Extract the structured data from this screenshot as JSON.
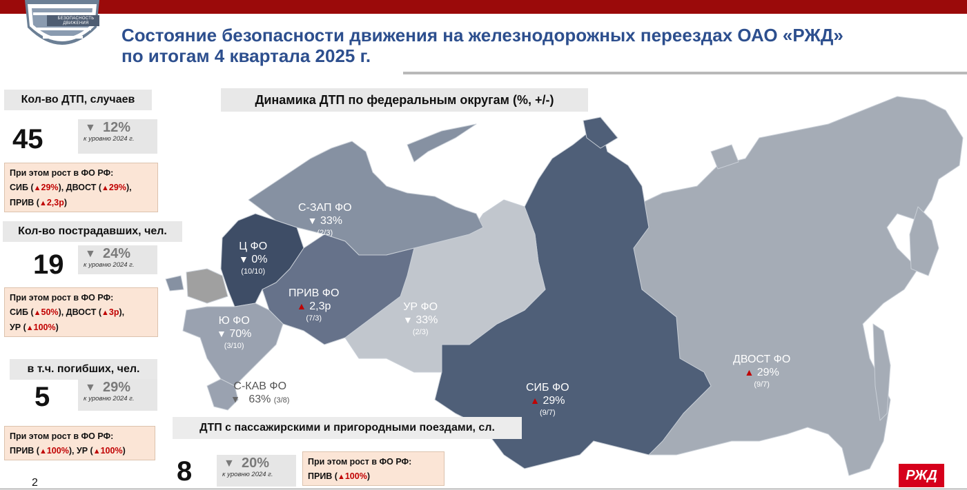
{
  "header": {
    "logo_text": "БЕЗОПАСНОСТЬ ДВИЖЕНИЯ",
    "title_line1": "Состояние безопасности движения на железнодорожных переездах ОАО «РЖД»",
    "title_line2": "по итогам 4 квартала 2025 г."
  },
  "stats": {
    "accidents": {
      "label": "Кол-во  ДТП, случаев",
      "value": "45",
      "delta": "12%",
      "delta_sub": "к уровню 2024 г.",
      "note_heading": "При этом рост в ФО РФ:",
      "note_items": [
        {
          "prefix": "СИБ (",
          "value": "29%",
          "suffix": "),  "
        },
        {
          "prefix": "ДВОСТ (",
          "value": "29%",
          "suffix": "),"
        },
        {
          "prefix": "ПРИВ (",
          "value": "2,3р",
          "suffix": ")"
        }
      ]
    },
    "injured": {
      "label": "Кол-во пострадавших, чел.",
      "value": "19",
      "delta": "24%",
      "delta_sub": "к уровню 2024 г.",
      "note_heading": "При этом рост в ФО РФ:",
      "note_items": [
        {
          "prefix": "СИБ (",
          "value": "50%",
          "suffix": "),  "
        },
        {
          "prefix": "ДВОСТ (",
          "value": "3р",
          "suffix": "),"
        },
        {
          "prefix": "УР (",
          "value": "100%",
          "suffix": ")"
        }
      ]
    },
    "killed": {
      "label": "в т.ч. погибших, чел.",
      "value": "5",
      "delta": "29%",
      "delta_sub": "к уровню 2024 г.",
      "note_heading": "При этом рост в ФО РФ:",
      "note_items": [
        {
          "prefix": "ПРИВ (",
          "value": "100%",
          "suffix": "), "
        },
        {
          "prefix": "УР (",
          "value": "100%",
          "suffix": ")"
        }
      ]
    },
    "passenger": {
      "label": "ДТП с пассажирскими и пригородными поездами, сл.",
      "value": "8",
      "delta": "20%",
      "delta_sub": "к уровню 2024 г.",
      "note_heading": "При этом рост в ФО РФ:",
      "note_items": [
        {
          "prefix": "ПРИВ (",
          "value": "100%",
          "suffix": ")"
        }
      ]
    }
  },
  "map": {
    "title": "Динамика ДТП по федеральным округам (%, +/-)",
    "regions": [
      {
        "name": "С-ЗАП ФО",
        "trend": "down",
        "value": "33%",
        "counts": "(2/3)"
      },
      {
        "name": "Ц ФО",
        "trend": "down",
        "value": "0%",
        "counts": "(10/10)"
      },
      {
        "name": "ПРИВ ФО",
        "trend": "up",
        "value": "2,3р",
        "counts": "(7/3)"
      },
      {
        "name": "УР ФО",
        "trend": "down",
        "value": "33%",
        "counts": "(2/3)"
      },
      {
        "name": "Ю ФО",
        "trend": "down",
        "value": "70%",
        "counts": "(3/10)"
      },
      {
        "name": "С-КАВ ФО",
        "trend": "down",
        "value": "63%",
        "counts": "(3/8)"
      },
      {
        "name": "СИБ ФО",
        "trend": "up",
        "value": "29%",
        "counts": "(9/7)"
      },
      {
        "name": "ДВОСТ ФО",
        "trend": "up",
        "value": "29%",
        "counts": "(9/7)"
      }
    ]
  },
  "footer": {
    "page_number": "2",
    "brand": "РЖД"
  },
  "colors": {
    "brand_red": "#9b0a0a",
    "title_blue": "#2d4f8e",
    "up_red": "#c00000",
    "note_bg": "#fbe5d6"
  },
  "icons": {
    "down": "chevron-down-icon",
    "up": "triangle-up-icon"
  }
}
